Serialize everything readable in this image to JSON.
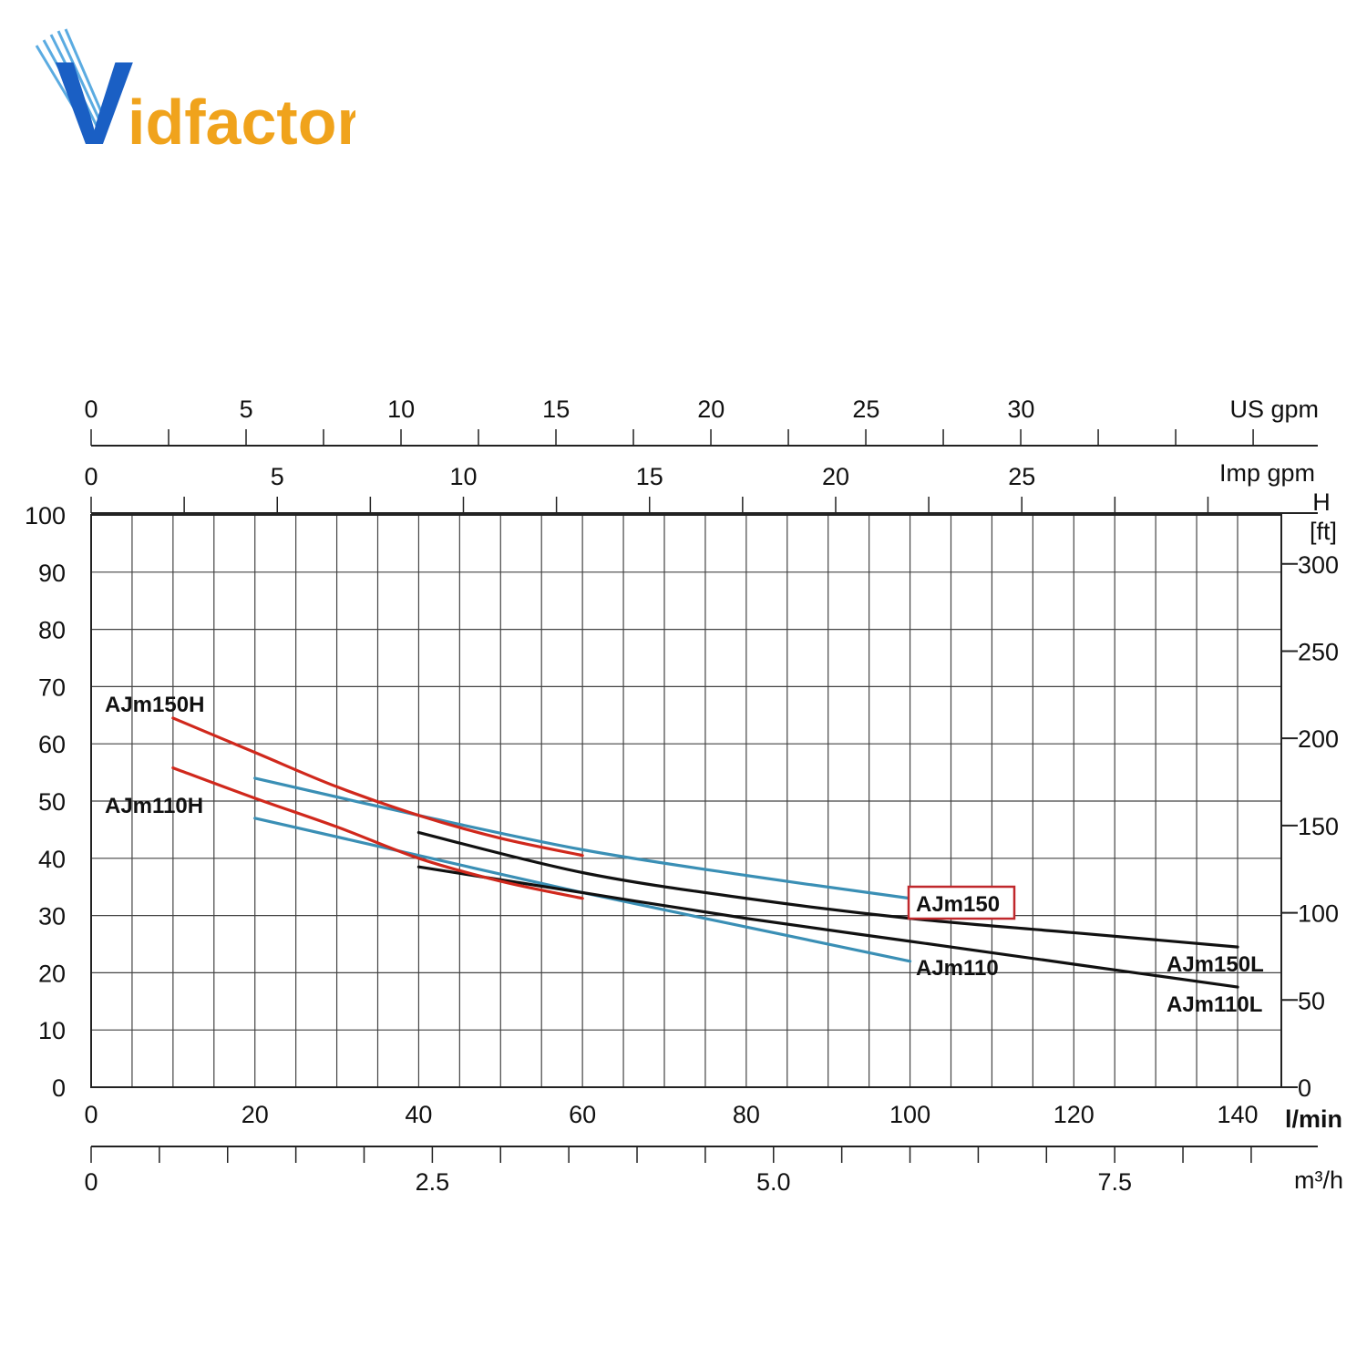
{
  "logo": {
    "text_v": "V",
    "text_rest": "idfactor",
    "blue": "#1a5fc4",
    "orange": "#f0a31c"
  },
  "colors": {
    "red": "#d0281c",
    "blue": "#3a8fb5",
    "black": "#111111",
    "grid": "#444444",
    "highlight_box": "#c0282c"
  },
  "chart_data": {
    "type": "line",
    "title": "",
    "x": {
      "unit": "l/min",
      "range": [
        0,
        145
      ],
      "ticks": [
        0,
        20,
        40,
        60,
        80,
        100,
        120,
        140
      ],
      "tick_labels": [
        "0",
        "20",
        "40",
        "60",
        "80",
        "100",
        "120",
        "140"
      ],
      "minor_step": 5
    },
    "y_left": {
      "unit": "",
      "range": [
        0,
        100
      ],
      "ticks": [
        0,
        10,
        20,
        30,
        40,
        50,
        60,
        70,
        80,
        90,
        100
      ],
      "tick_labels": [
        "0",
        "10",
        "20",
        "30",
        "40",
        "50",
        "60",
        "70",
        "80",
        "90",
        "100"
      ]
    },
    "y_right": {
      "unit_top": "H",
      "unit": "[ft]",
      "ticks_m": [
        0,
        15.24,
        30.48,
        45.72,
        60.96,
        76.2,
        91.44
      ],
      "tick_labels": [
        "0",
        "50",
        "100",
        "150",
        "200",
        "250",
        "300"
      ]
    },
    "x_top_us": {
      "unit": "US gpm",
      "labels": [
        "0",
        "5",
        "10",
        "15",
        "20",
        "25",
        "30"
      ],
      "label_lmin": [
        0,
        18.93,
        37.85,
        56.78,
        75.71,
        94.64,
        113.56
      ],
      "tick_step_lmin": 9.46,
      "tick_max_lmin": 142
    },
    "x_top_imp": {
      "unit": "Imp gpm",
      "labels": [
        "0",
        "5",
        "10",
        "15",
        "20",
        "25"
      ],
      "label_lmin": [
        0,
        22.73,
        45.46,
        68.19,
        90.92,
        113.65
      ],
      "tick_step_lmin": 11.365,
      "tick_max_lmin": 137
    },
    "x_bottom_m3h": {
      "unit": "m³/h",
      "labels": [
        "0",
        "2.5",
        "5.0",
        "7.5"
      ],
      "label_lmin": [
        0,
        41.67,
        83.33,
        125
      ],
      "tick_step_lmin": 8.333,
      "tick_max_lmin": 142
    },
    "series": [
      {
        "name": "AJm150H",
        "color": "red",
        "x": [
          10,
          20,
          30,
          40,
          50,
          60
        ],
        "y": [
          64.5,
          58.5,
          52.5,
          47.5,
          43.5,
          40.5
        ]
      },
      {
        "name": "AJm110H",
        "color": "red",
        "x": [
          10,
          20,
          30,
          40,
          50,
          60
        ],
        "y": [
          55.8,
          50.5,
          45.5,
          40,
          36,
          33
        ]
      },
      {
        "name": "AJm150",
        "color": "blue",
        "x": [
          20,
          40,
          60,
          80,
          100
        ],
        "y": [
          54,
          47.5,
          41.5,
          37,
          33
        ]
      },
      {
        "name": "AJm110",
        "color": "blue",
        "x": [
          20,
          40,
          60,
          80,
          100
        ],
        "y": [
          47,
          40.5,
          34,
          28,
          22
        ]
      },
      {
        "name": "AJm150L",
        "color": "black",
        "x": [
          40,
          60,
          80,
          100,
          120,
          140
        ],
        "y": [
          44.5,
          37.5,
          33,
          29.5,
          27,
          24.5
        ]
      },
      {
        "name": "AJm110L",
        "color": "black",
        "x": [
          40,
          60,
          80,
          100,
          120,
          140
        ],
        "y": [
          38.5,
          34,
          29.5,
          25.5,
          21.5,
          17.5
        ]
      }
    ],
    "highlighted_series": "AJm150",
    "grid": true
  }
}
